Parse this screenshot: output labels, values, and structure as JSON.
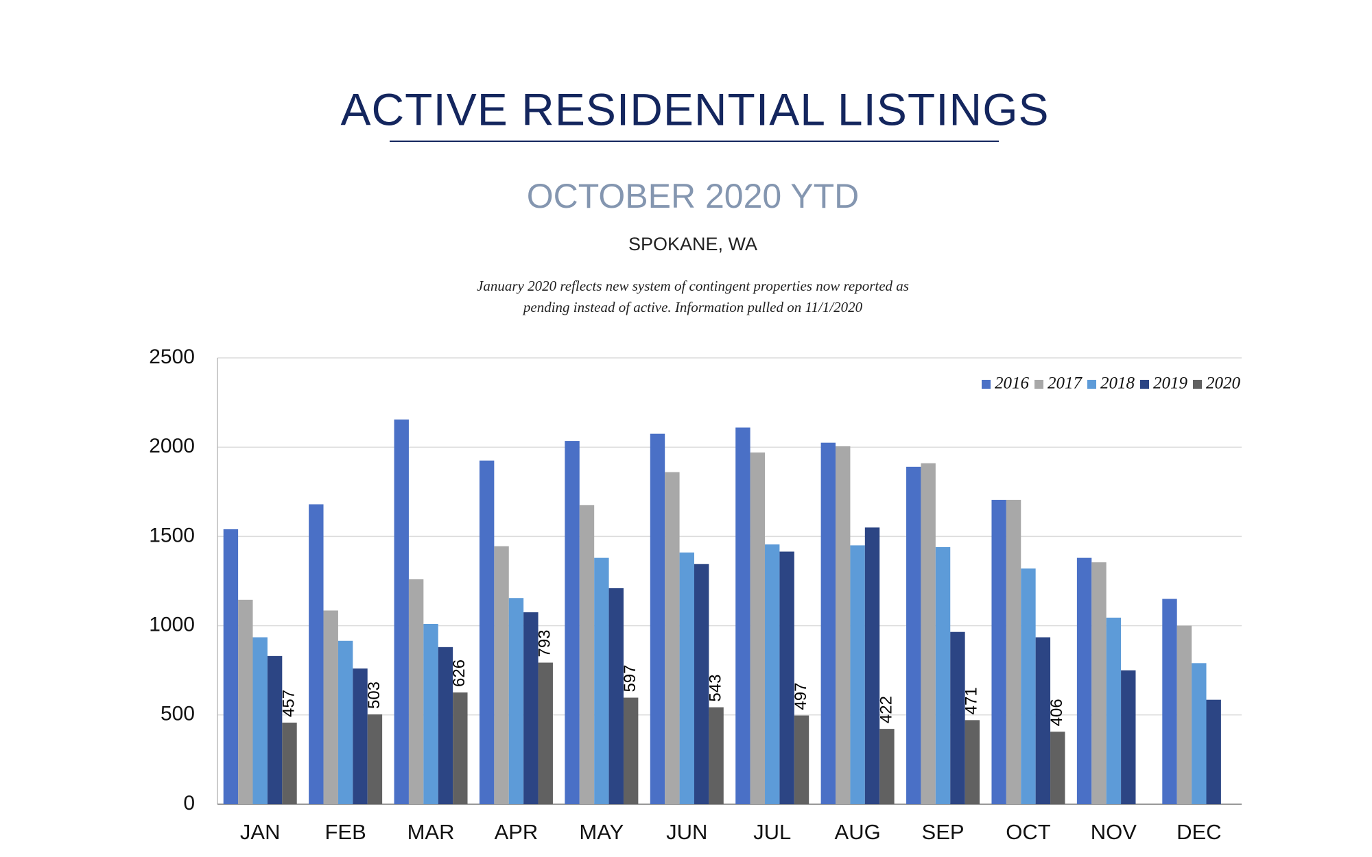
{
  "chart_data": {
    "type": "bar",
    "title": "ACTIVE RESIDENTIAL LISTINGS",
    "subtitle": "OCTOBER 2020 YTD",
    "location": "SPOKANE, WA",
    "note": [
      "January 2020 reflects new system of contingent properties now reported as",
      "pending instead of active.  Information pulled on 11/1/2020"
    ],
    "categories": [
      "JAN",
      "FEB",
      "MAR",
      "APR",
      "MAY",
      "JUN",
      "JUL",
      "AUG",
      "SEP",
      "OCT",
      "NOV",
      "DEC"
    ],
    "series": [
      {
        "name": "2016",
        "color": "#4a70c6",
        "values": [
          1540,
          1680,
          2155,
          1925,
          2035,
          2075,
          2110,
          2025,
          1890,
          1705,
          1380,
          1150
        ]
      },
      {
        "name": "2017",
        "color": "#a8a8a8",
        "values": [
          1145,
          1085,
          1260,
          1445,
          1675,
          1860,
          1970,
          2005,
          1910,
          1705,
          1355,
          1000
        ]
      },
      {
        "name": "2018",
        "color": "#5d9bd8",
        "values": [
          935,
          915,
          1010,
          1155,
          1380,
          1410,
          1455,
          1450,
          1440,
          1320,
          1045,
          790
        ]
      },
      {
        "name": "2019",
        "color": "#2c4584",
        "values": [
          830,
          760,
          880,
          1075,
          1210,
          1345,
          1415,
          1550,
          965,
          935,
          750,
          585
        ]
      },
      {
        "name": "2020",
        "color": "#616161",
        "show_labels": true,
        "values": [
          457,
          503,
          626,
          793,
          597,
          543,
          497,
          422,
          471,
          406,
          null,
          null
        ]
      }
    ],
    "ylim": [
      0,
      2500
    ],
    "yticks": [
      0,
      500,
      1000,
      1500,
      2000,
      2500
    ],
    "grid": true,
    "legend": "top-right"
  }
}
